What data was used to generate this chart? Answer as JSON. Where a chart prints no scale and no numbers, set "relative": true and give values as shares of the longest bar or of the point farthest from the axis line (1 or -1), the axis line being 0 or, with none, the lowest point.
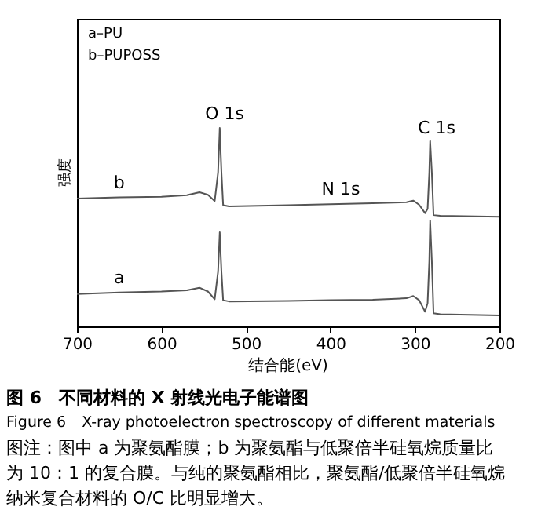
{
  "chart_data": {
    "type": "line",
    "relative": true,
    "title": "图 6　不同材料的 X 射线光电子能谱图",
    "subtitle": "Figure 6　X-ray photoelectron spectroscopy of different materials",
    "xlabel": "结合能(eV)",
    "ylabel": "强度",
    "x": [
      700,
      650,
      600,
      570,
      555,
      545,
      537,
      533,
      531,
      529,
      527,
      520,
      450,
      400,
      350,
      310,
      302,
      295,
      288,
      285,
      283,
      282,
      280,
      278,
      270,
      200
    ],
    "xlim": [
      700,
      200
    ],
    "xticks": [
      700,
      600,
      500,
      400,
      300,
      200
    ],
    "series": [
      {
        "name": "b",
        "color": "#555555",
        "values": [
          0.645,
          0.65,
          0.653,
          0.661,
          0.676,
          0.663,
          0.632,
          0.776,
          1.0,
          0.776,
          0.611,
          0.605,
          0.611,
          0.616,
          0.621,
          0.626,
          0.634,
          0.613,
          0.571,
          0.592,
          0.776,
          0.934,
          0.776,
          0.561,
          0.558,
          0.553
        ]
      },
      {
        "name": "a",
        "color": "#555555",
        "values": [
          0.163,
          0.171,
          0.176,
          0.182,
          0.195,
          0.176,
          0.137,
          0.276,
          0.474,
          0.276,
          0.132,
          0.126,
          0.129,
          0.132,
          0.134,
          0.142,
          0.153,
          0.132,
          0.074,
          0.118,
          0.329,
          0.534,
          0.329,
          0.066,
          0.061,
          0.055
        ]
      }
    ],
    "annotations": [
      "a–PU",
      "b–PUPOSS",
      "O 1s",
      "N 1s",
      "C 1s",
      "图注：图中 a 为聚氨酯膜；b 为聚氨酯与低聚倍半硅氧烷质量比为 10：1 的复合膜。与纯的聚氨酯相比，聚氨酯/低聚倍半硅氧烷纳米复合材料的 O/C 比明显增大。"
    ],
    "grid": false,
    "marker": "none",
    "line_style": "solid"
  }
}
